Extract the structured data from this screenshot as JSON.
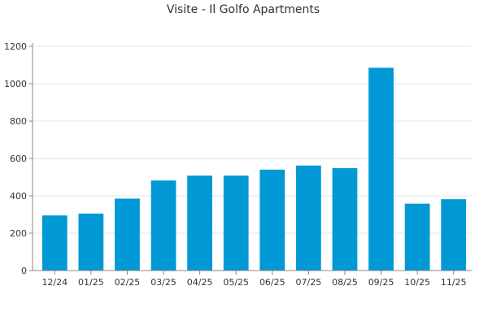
{
  "chart_data": {
    "type": "bar",
    "title": "Visite - Il Golfo Apartments",
    "xlabel": "",
    "ylabel": "",
    "categories": [
      "12/24",
      "01/25",
      "02/25",
      "03/25",
      "04/25",
      "05/25",
      "06/25",
      "07/25",
      "08/25",
      "09/25",
      "10/25",
      "11/25"
    ],
    "values": [
      295,
      305,
      385,
      482,
      508,
      508,
      540,
      562,
      548,
      1085,
      358,
      382
    ],
    "ylim": [
      0,
      1200
    ],
    "yticks": [
      0,
      200,
      400,
      600,
      800,
      1000,
      1200
    ],
    "grid": true,
    "legend": "none",
    "bar_color": "#0099d6",
    "grid_color": "#e6e6e6",
    "axis_color": "#888888"
  }
}
